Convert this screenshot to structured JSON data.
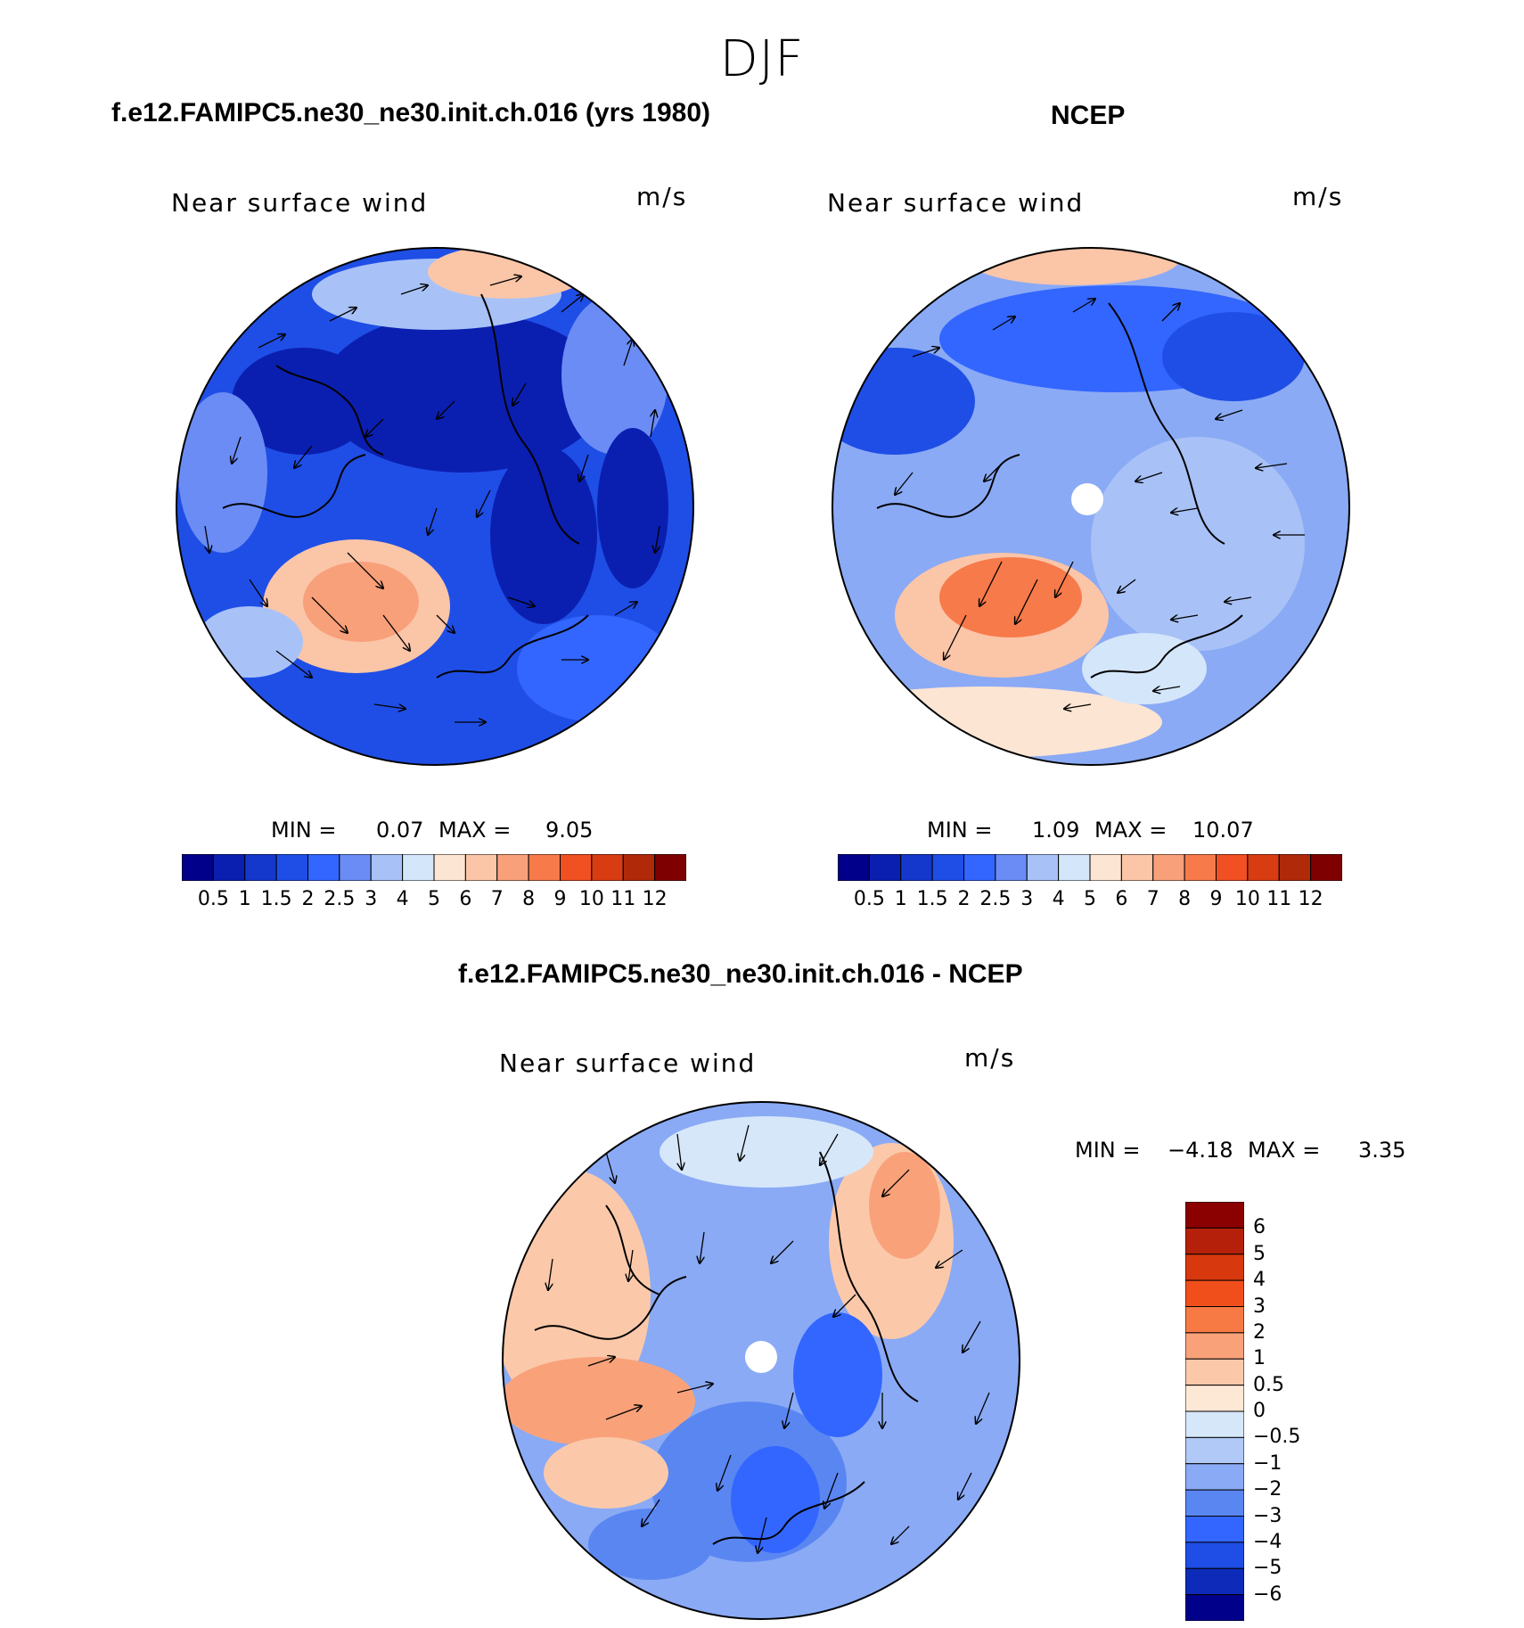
{
  "figure": {
    "title": "DJF"
  },
  "panels": [
    {
      "id": "model",
      "title": "f.e12.FAMIPC5.ne30_ne30.init.ch.016 (yrs 1980)",
      "variable": "Near surface wind",
      "units": "m/s",
      "min_label": "MIN =",
      "min_value": "0.07",
      "max_label": "MAX =",
      "max_value": "9.05"
    },
    {
      "id": "ncep",
      "title": "NCEP",
      "variable": "Near surface wind",
      "units": "m/s",
      "min_label": "MIN =",
      "min_value": "1.09",
      "max_label": "MAX =",
      "max_value": "10.07"
    },
    {
      "id": "diff",
      "title": "f.e12.FAMIPC5.ne30_ne30.init.ch.016 - NCEP",
      "variable": "Near surface wind",
      "units": "m/s",
      "min_label": "MIN =",
      "min_value": "−4.18",
      "max_label": "MAX =",
      "max_value": "3.35"
    }
  ],
  "colorbars": {
    "abs": {
      "levels": [
        "0.5",
        "1",
        "1.5",
        "2",
        "2.5",
        "3",
        "4",
        "5",
        "6",
        "7",
        "8",
        "9",
        "10",
        "11",
        "12"
      ],
      "colors": [
        "#00008b",
        "#0a1fb0",
        "#1438cc",
        "#1f4ee6",
        "#3366ff",
        "#6b8cf5",
        "#a8c2f7",
        "#d4e6fa",
        "#fde5d3",
        "#fbc5a8",
        "#f8a07a",
        "#f77a4a",
        "#f05022",
        "#d83c12",
        "#b02a0a",
        "#7f0000"
      ]
    },
    "diff": {
      "levels": [
        "6",
        "5",
        "4",
        "3",
        "2",
        "1",
        "0.5",
        "0",
        "−0.5",
        "−1",
        "−2",
        "−3",
        "−4",
        "−5",
        "−6"
      ],
      "colors": [
        "#8b0000",
        "#b5200a",
        "#d8380e",
        "#f04f1c",
        "#f77a45",
        "#f9a27a",
        "#fbc9aa",
        "#fde8d5",
        "#d6e7fa",
        "#b0c9f7",
        "#8aaaf5",
        "#5a86f2",
        "#3366ff",
        "#1f4ee6",
        "#0d2bb8",
        "#00008b"
      ]
    }
  }
}
